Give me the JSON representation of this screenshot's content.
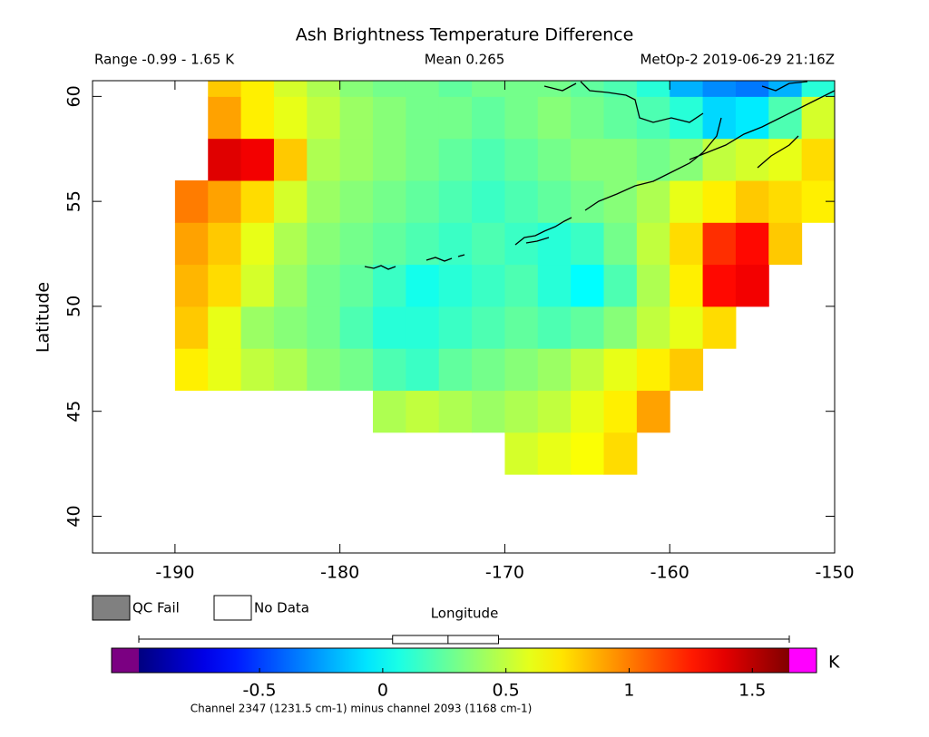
{
  "chart_data": {
    "type": "heatmap",
    "title": "Ash Brightness Temperature Difference",
    "subtitle_range": "Range -0.99 - 1.65 K",
    "subtitle_mean": "Mean 0.265",
    "subtitle_source": "MetOp-2 2019-06-29 21:16Z",
    "xlabel": "Longitude",
    "ylabel": "Latitude",
    "xlim": [
      -195,
      -150
    ],
    "ylim": [
      38.25,
      60.75
    ],
    "xticks": [
      -190,
      -180,
      -170,
      -160,
      -150
    ],
    "yticks": [
      40,
      45,
      50,
      55,
      60
    ],
    "x_edges": [
      -190,
      -188,
      -186,
      -184,
      -182,
      -180,
      -178,
      -176,
      -174,
      -172,
      -170,
      -168,
      -166,
      -164,
      -162,
      -160,
      -158,
      -156,
      -154,
      -152,
      -150
    ],
    "y_edges": [
      42,
      44,
      46,
      48,
      50,
      52,
      54,
      56,
      58,
      60,
      60.75
    ],
    "values": [
      [
        null,
        null,
        null,
        null,
        null,
        null,
        null,
        null,
        null,
        null,
        0.55,
        0.6,
        0.65,
        0.75,
        null,
        null,
        null,
        null,
        null,
        null
      ],
      [
        null,
        null,
        null,
        null,
        null,
        null,
        0.45,
        0.5,
        0.45,
        0.4,
        0.45,
        0.5,
        0.6,
        0.7,
        0.9,
        null,
        null,
        null,
        null,
        null
      ],
      [
        0.7,
        0.6,
        0.5,
        0.45,
        0.35,
        0.3,
        0.2,
        0.15,
        0.25,
        0.3,
        0.35,
        0.4,
        0.5,
        0.6,
        0.7,
        0.8,
        null,
        null,
        null,
        null
      ],
      [
        0.8,
        0.6,
        0.4,
        0.35,
        0.3,
        0.2,
        0.1,
        0.1,
        0.15,
        0.2,
        0.25,
        0.2,
        0.25,
        0.35,
        0.5,
        0.6,
        0.75,
        null,
        null,
        null
      ],
      [
        0.85,
        0.75,
        0.55,
        0.4,
        0.3,
        0.25,
        0.15,
        0.05,
        0.1,
        0.15,
        0.2,
        0.1,
        0.0,
        0.2,
        0.45,
        0.7,
        1.3,
        1.35,
        null,
        null
      ],
      [
        0.9,
        0.8,
        0.6,
        0.45,
        0.35,
        0.3,
        0.25,
        0.2,
        0.15,
        0.2,
        0.15,
        0.1,
        0.15,
        0.3,
        0.5,
        0.75,
        1.2,
        1.3,
        0.8,
        null
      ],
      [
        1.0,
        0.9,
        0.75,
        0.55,
        0.4,
        0.35,
        0.3,
        0.25,
        0.2,
        0.15,
        0.2,
        0.25,
        0.3,
        0.35,
        0.45,
        0.6,
        0.7,
        0.8,
        0.75,
        0.7
      ],
      [
        null,
        1.4,
        1.35,
        0.8,
        0.45,
        0.4,
        0.35,
        0.3,
        0.25,
        0.2,
        0.25,
        0.3,
        0.35,
        0.35,
        0.3,
        0.35,
        0.5,
        0.55,
        0.6,
        0.75
      ],
      [
        null,
        0.9,
        0.7,
        0.6,
        0.5,
        0.4,
        0.35,
        0.3,
        0.3,
        0.25,
        0.3,
        0.35,
        0.3,
        0.25,
        0.2,
        0.1,
        -0.1,
        -0.05,
        0.2,
        0.55
      ],
      [
        null,
        0.8,
        0.7,
        0.55,
        0.45,
        0.35,
        0.3,
        0.3,
        0.25,
        0.3,
        0.3,
        0.3,
        0.25,
        0.2,
        0.1,
        -0.2,
        -0.3,
        -0.35,
        -0.2,
        0.1
      ]
    ],
    "colorbar": {
      "clim": [
        -0.99,
        1.65
      ],
      "ticks": [
        -0.5,
        0,
        0.5,
        1,
        1.5
      ],
      "unit": "K",
      "under_color": "#7b0082",
      "over_color": "#ff00ff",
      "mean": 0.265,
      "spread": [
        0.04,
        0.47
      ]
    },
    "legend": [
      {
        "name": "QC Fail",
        "color": "#808080"
      },
      {
        "name": "No Data",
        "color": "#ffffff"
      }
    ],
    "footnote": "Channel 2347 (1231.5 cm-1) minus channel 2093 (1168 cm-1)"
  }
}
